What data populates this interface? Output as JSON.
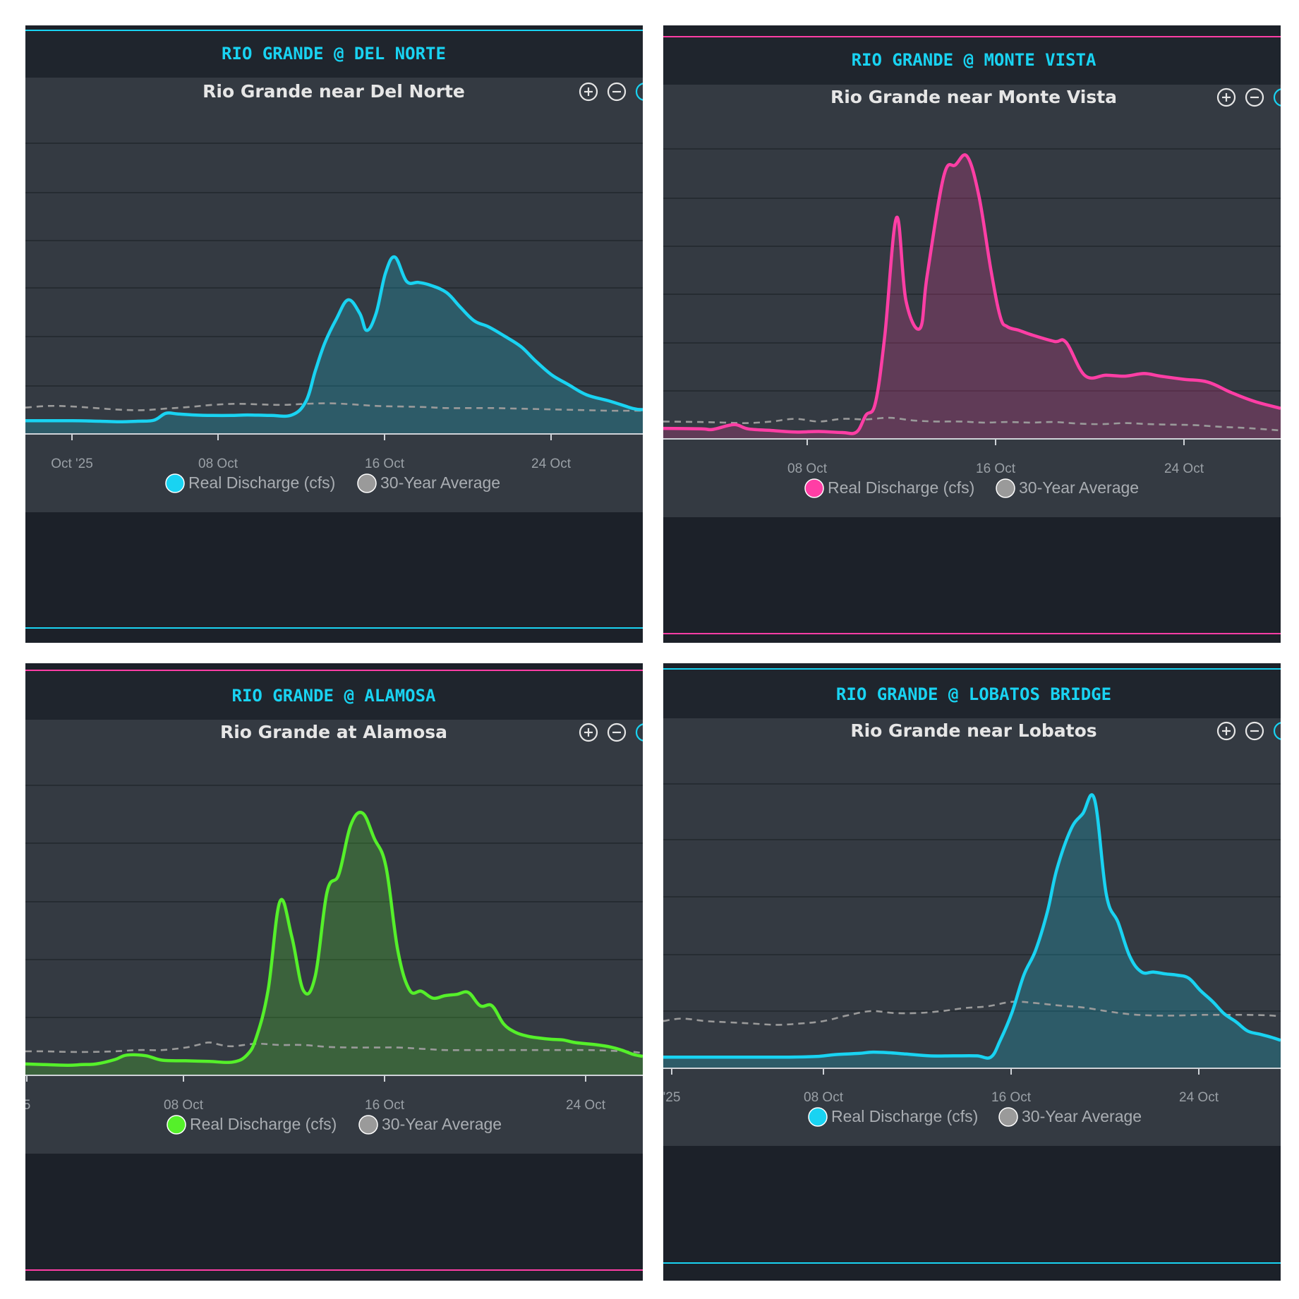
{
  "colors": {
    "page_background": "#ffffff",
    "panel_background": "#1c2129",
    "plot_background": "#343a42",
    "gridline": "#22272d",
    "average_line": "#9a9a9a",
    "panel_title_text": "#19d3f2"
  },
  "toolbar_icons": [
    "zoom-in-icon",
    "zoom-out-icon"
  ],
  "panels": [
    {
      "panel_title": "RIO GRANDE @ DEL NORTE",
      "border_color": "#19d3f2",
      "chart_title": "Rio Grande near Del Norte",
      "x_ticks": [
        "Oct '25",
        "08 Oct",
        "16 Oct",
        "24 Oct"
      ],
      "legend": {
        "real": "Real Discharge (cfs)",
        "average": "30-Year Average"
      }
    },
    {
      "panel_title": "RIO GRANDE @ MONTE VISTA",
      "border_color": "#ff3ea5",
      "chart_title": "Rio Grande near Monte Vista",
      "x_ticks": [
        "08 Oct",
        "16 Oct",
        "24 Oct"
      ],
      "legend": {
        "real": "Real Discharge (cfs)",
        "average": "30-Year Average"
      }
    },
    {
      "panel_title": "RIO GRANDE @ ALAMOSA",
      "border_color": "#ff3ea5",
      "chart_title": "Rio Grande at Alamosa",
      "x_ticks": [
        "5",
        "08 Oct",
        "16 Oct",
        "24 Oct"
      ],
      "legend": {
        "real": "Real Discharge (cfs)",
        "average": "30-Year Average"
      }
    },
    {
      "panel_title": "RIO GRANDE @ LOBATOS BRIDGE",
      "border_color": "#19d3f2",
      "chart_title": "Rio Grande near Lobatos",
      "x_ticks": [
        "'25",
        "08 Oct",
        "16 Oct",
        "24 Oct"
      ],
      "legend": {
        "real": "Real Discharge (cfs)",
        "average": "30-Year Average"
      }
    }
  ],
  "chart_data": [
    {
      "type": "area",
      "title": "Rio Grande near Del Norte",
      "x_unit": "day of October 2025",
      "xlim": [
        -1,
        25.4
      ],
      "ylim": [
        0,
        600
      ],
      "grid": true,
      "x_tick_labels": [
        "Oct '25",
        "08 Oct",
        "16 Oct",
        "24 Oct"
      ],
      "legend_position": "bottom",
      "series": [
        {
          "name": "Real Discharge (cfs)",
          "color": "#19d3f2",
          "x": [
            -1,
            1,
            2.2,
            3,
            3.8,
            4.5,
            5,
            5.5,
            6.2,
            7,
            7.8,
            8.5,
            9.5,
            10.4,
            11,
            11.4,
            11.8,
            12.3,
            12.8,
            13.3,
            13.6,
            14,
            14.4,
            14.8,
            15.3,
            15.8,
            16.3,
            17,
            17.6,
            18.2,
            18.8,
            19.5,
            20.2,
            20.8,
            21.5,
            22.2,
            23,
            24,
            25,
            25.4
          ],
          "y": [
            25,
            25,
            24,
            23,
            24,
            26,
            39,
            38,
            36,
            35,
            35,
            36,
            35,
            36,
            62,
            120,
            172,
            218,
            254,
            228,
            196,
            229,
            305,
            335,
            289,
            287,
            282,
            268,
            240,
            214,
            203,
            185,
            165,
            139,
            112,
            94,
            74,
            62,
            48,
            46
          ]
        },
        {
          "name": "30-Year Average",
          "color": "#9a9a9a",
          "style": "dashed",
          "x": [
            -1,
            0,
            1,
            2,
            3,
            4,
            5,
            6,
            7,
            8,
            9,
            10,
            11,
            12,
            13,
            14,
            15,
            16,
            17,
            18,
            19,
            20,
            21,
            22,
            23,
            24,
            25,
            25.4
          ],
          "y": [
            50,
            53,
            52,
            49,
            46,
            45,
            48,
            51,
            55,
            57,
            56,
            55,
            57,
            58,
            56,
            53,
            52,
            51,
            49,
            49,
            49,
            48,
            47,
            46,
            45,
            44,
            44,
            44
          ]
        }
      ]
    },
    {
      "type": "area",
      "title": "Rio Grande near Monte Vista",
      "x_unit": "day of October 2025",
      "xlim": [
        2.4,
        28.6
      ],
      "ylim": [
        0,
        600
      ],
      "grid": true,
      "x_tick_labels": [
        "08 Oct",
        "16 Oct",
        "24 Oct"
      ],
      "legend_position": "bottom",
      "series": [
        {
          "name": "Real Discharge (cfs)",
          "color": "#ff3ea5",
          "x": [
            2.4,
            4,
            4.5,
            5.4,
            6,
            7,
            8,
            9,
            10,
            10.6,
            11,
            11.4,
            11.8,
            12.3,
            12.7,
            13.3,
            13.6,
            14.3,
            14.8,
            15.3,
            15.8,
            16.3,
            16.7,
            17,
            17.5,
            18,
            19,
            19.5,
            20.3,
            21.2,
            22,
            22.8,
            23.5,
            24.5,
            25.5,
            26.5,
            27.5,
            28.6
          ],
          "y": [
            20,
            19,
            18,
            27,
            19,
            16,
            13,
            14,
            12,
            13,
            45,
            68,
            195,
            420,
            262,
            210,
            310,
            498,
            520,
            536,
            460,
            322,
            232,
            213,
            206,
            198,
            185,
            183,
            120,
            121,
            119,
            124,
            119,
            113,
            108,
            88,
            71,
            58
          ]
        },
        {
          "name": "30-Year Average",
          "color": "#9a9a9a",
          "style": "dashed",
          "x": [
            2.4,
            4,
            5,
            6,
            7,
            8,
            9,
            10,
            11,
            12,
            13,
            14,
            15,
            16,
            17,
            18,
            19,
            20,
            21,
            22,
            23,
            24,
            25,
            26,
            27,
            28,
            28.6
          ],
          "y": [
            33,
            32,
            31,
            30,
            33,
            38,
            33,
            38,
            37,
            40,
            35,
            33,
            33,
            31,
            32,
            31,
            32,
            29,
            28,
            30,
            28,
            27,
            26,
            23,
            21,
            18,
            16
          ]
        }
      ]
    },
    {
      "type": "area",
      "title": "Rio Grande at Alamosa",
      "x_unit": "day of October 2025",
      "xlim": [
        1.2,
        27.4
      ],
      "ylim": [
        0,
        500
      ],
      "grid": true,
      "x_tick_labels": [
        "5",
        "08 Oct",
        "16 Oct",
        "24 Oct"
      ],
      "legend_position": "bottom",
      "series": [
        {
          "name": "Real Discharge (cfs)",
          "color": "#55f02a",
          "x": [
            1.2,
            2,
            3,
            3.6,
            4.2,
            5,
            5.5,
            6.3,
            7,
            8,
            9,
            10,
            10.6,
            11,
            11.5,
            12,
            12.5,
            13,
            13.5,
            14,
            14.5,
            15,
            15.5,
            16,
            16.5,
            17,
            17.5,
            18,
            18.5,
            19,
            19.5,
            20,
            20.5,
            21,
            21.5,
            22,
            22.5,
            23,
            23.5,
            24,
            24.5,
            25,
            25.5,
            26,
            26.5,
            27,
            27.4
          ],
          "y": [
            18,
            17,
            16,
            17,
            18,
            25,
            32,
            31,
            24,
            23,
            22,
            21,
            32,
            60,
            135,
            275,
            220,
            134,
            157,
            290,
            318,
            395,
            415,
            375,
            330,
            198,
            135,
            133,
            122,
            126,
            128,
            131,
            110,
            110,
            81,
            68,
            62,
            59,
            57,
            56,
            52,
            50,
            48,
            45,
            40,
            33,
            30
          ]
        },
        {
          "name": "30-Year Average",
          "color": "#9a9a9a",
          "style": "dashed",
          "x": [
            1.2,
            2,
            3,
            4,
            5,
            6,
            7,
            8,
            8.5,
            9,
            9.5,
            10,
            11,
            12,
            13,
            14,
            15,
            16,
            17,
            18,
            19,
            20,
            21,
            22,
            23,
            24,
            25,
            26,
            27,
            27.4
          ],
          "y": [
            38,
            38,
            37,
            37,
            38,
            40,
            40,
            44,
            48,
            52,
            48,
            46,
            50,
            48,
            48,
            45,
            44,
            44,
            44,
            42,
            40,
            40,
            40,
            40,
            40,
            40,
            40,
            39,
            37,
            35
          ]
        }
      ]
    },
    {
      "type": "area",
      "title": "Rio Grande near Lobatos",
      "x_unit": "day of October 2025",
      "xlim": [
        -0.3,
        25.9
      ],
      "ylim": [
        0,
        500
      ],
      "grid": true,
      "x_tick_labels": [
        "'25",
        "08 Oct",
        "16 Oct",
        "24 Oct"
      ],
      "legend_position": "bottom",
      "series": [
        {
          "name": "Real Discharge (cfs)",
          "color": "#19d3f2",
          "x": [
            -0.3,
            1,
            2,
            3,
            4,
            5,
            6.2,
            7,
            8,
            8.6,
            9.3,
            10,
            11,
            12,
            13,
            13.6,
            14,
            14.5,
            15,
            15.5,
            16,
            16.4,
            17,
            17.5,
            18,
            18.5,
            19,
            19.5,
            20,
            20.5,
            21,
            21.5,
            22,
            22.5,
            23,
            23.5,
            24,
            24.5,
            25,
            25.5,
            25.9
          ],
          "y": [
            18,
            18,
            18,
            18,
            18,
            18,
            19,
            22,
            24,
            26,
            25,
            23,
            20,
            20,
            20,
            18,
            45,
            90,
            150,
            190,
            252,
            320,
            385,
            410,
            433,
            280,
            235,
            180,
            155,
            155,
            152,
            150,
            145,
            125,
            108,
            88,
            75,
            60,
            55,
            50,
            45
          ]
        },
        {
          "name": "30-Year Average",
          "color": "#9a9a9a",
          "style": "dashed",
          "x": [
            -0.3,
            0.5,
            1.5,
            2.5,
            3.5,
            4.5,
            5.5,
            6.5,
            7.5,
            8.5,
            9.5,
            10.5,
            11.5,
            12.5,
            13.5,
            14.5,
            15.5,
            16.5,
            17.5,
            18.5,
            19.5,
            20.5,
            21.5,
            22.5,
            23.5,
            24.5,
            25.5,
            25.9
          ],
          "y": [
            76,
            80,
            76,
            74,
            72,
            70,
            72,
            76,
            85,
            92,
            89,
            89,
            92,
            97,
            100,
            107,
            105,
            101,
            98,
            92,
            87,
            85,
            85,
            86,
            86,
            86,
            85,
            83
          ]
        }
      ]
    }
  ]
}
